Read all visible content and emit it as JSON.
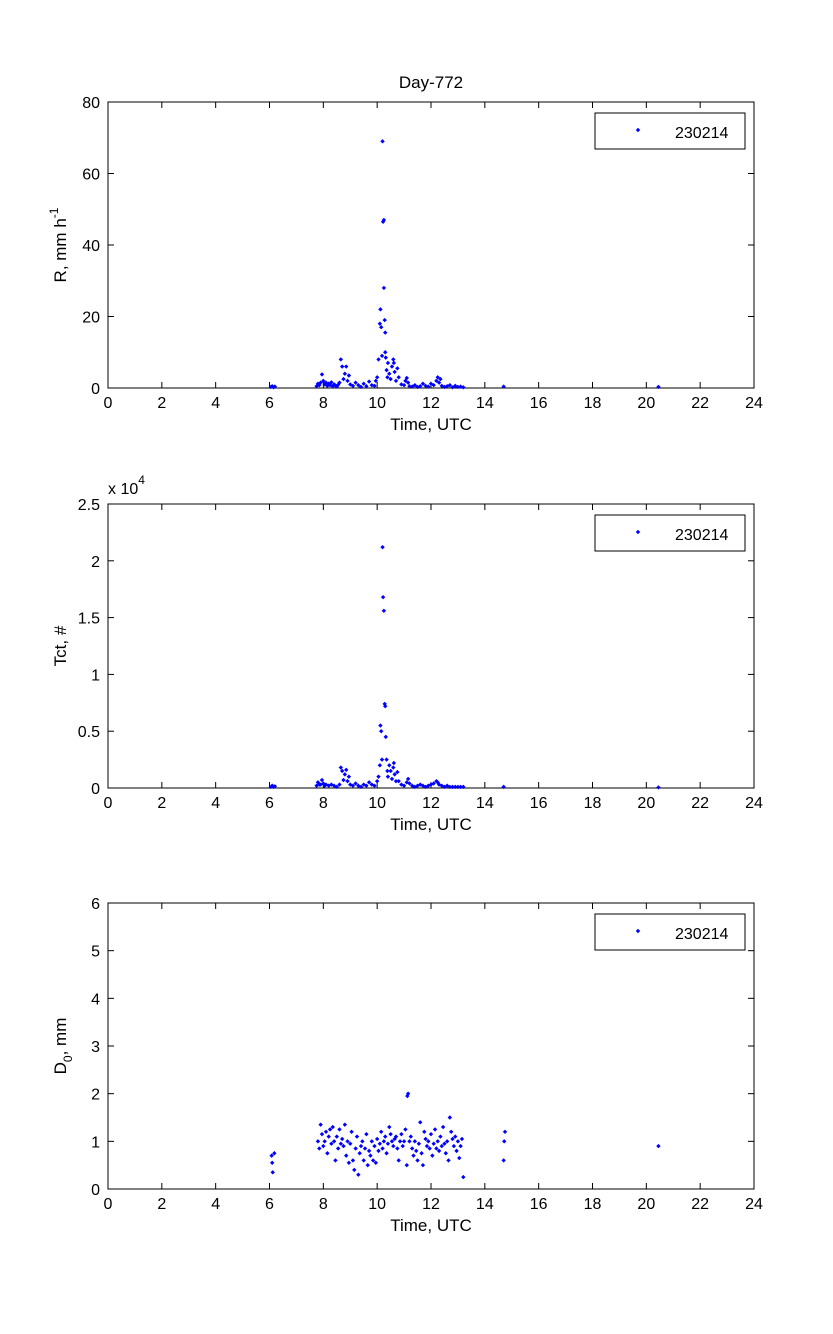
{
  "chart_data": [
    {
      "type": "scatter",
      "title": "Day-772",
      "xlabel": "Time, UTC",
      "ylabel": "R, mm h",
      "ylabel_sup": "-1",
      "exponent_label": "",
      "xlim": [
        0,
        24
      ],
      "ylim": [
        0,
        80
      ],
      "xticks": [
        "0",
        "2",
        "4",
        "6",
        "8",
        "10",
        "12",
        "14",
        "16",
        "18",
        "20",
        "22",
        "24"
      ],
      "yticks": [
        "0",
        "20",
        "40",
        "60",
        "80"
      ],
      "legend": {
        "position": "top-right",
        "label": "230214"
      },
      "color": "#0000ff",
      "series": [
        {
          "name": "230214",
          "x": [
            6.05,
            6.1,
            6.15,
            6.2,
            7.75,
            7.8,
            7.85,
            7.9,
            7.95,
            8.0,
            8.05,
            8.1,
            8.15,
            8.2,
            8.25,
            8.3,
            8.35,
            8.4,
            8.45,
            8.5,
            8.55,
            8.6,
            8.65,
            8.7,
            8.75,
            8.8,
            8.85,
            8.9,
            8.95,
            9.0,
            9.1,
            9.2,
            9.3,
            9.4,
            9.5,
            9.6,
            9.7,
            9.8,
            9.9,
            9.95,
            10.0,
            10.05,
            10.1,
            10.12,
            10.15,
            10.18,
            10.2,
            10.22,
            10.25,
            10.25,
            10.28,
            10.3,
            10.3,
            10.32,
            10.35,
            10.38,
            10.4,
            10.45,
            10.5,
            10.55,
            10.6,
            10.62,
            10.65,
            10.7,
            10.75,
            10.8,
            10.9,
            11.0,
            11.05,
            11.1,
            11.15,
            11.2,
            11.3,
            11.4,
            11.5,
            11.6,
            11.7,
            11.8,
            11.9,
            12.0,
            12.1,
            12.2,
            12.25,
            12.3,
            12.35,
            12.4,
            12.5,
            12.6,
            12.7,
            12.8,
            12.9,
            13.0,
            13.1,
            13.2,
            14.7,
            20.45
          ],
          "y": [
            0.3,
            0.5,
            0.2,
            0.4,
            0.5,
            1.2,
            0.8,
            1.5,
            3.8,
            2.0,
            1.0,
            1.5,
            0.6,
            1.2,
            0.8,
            1.6,
            0.5,
            1.0,
            0.7,
            0.4,
            0.9,
            1.5,
            8.0,
            6.0,
            2.5,
            4.0,
            6.0,
            2.0,
            3.5,
            1.0,
            0.6,
            1.5,
            0.8,
            0.3,
            1.2,
            0.5,
            1.8,
            0.8,
            0.6,
            2.0,
            3.0,
            8.0,
            18.0,
            22.0,
            17.0,
            9.0,
            69.0,
            46.5,
            47.0,
            28.0,
            19.0,
            15.5,
            10.0,
            8.5,
            5.0,
            3.0,
            7.0,
            4.0,
            2.5,
            6.0,
            8.0,
            7.0,
            4.5,
            2.0,
            5.5,
            3.0,
            1.0,
            0.8,
            2.0,
            2.8,
            1.5,
            0.5,
            0.4,
            0.8,
            0.3,
            0.5,
            1.2,
            0.6,
            0.4,
            1.2,
            0.8,
            2.0,
            3.0,
            1.5,
            2.5,
            0.6,
            0.3,
            0.5,
            0.8,
            0.2,
            0.6,
            0.3,
            0.4,
            0.2,
            0.4,
            0.3
          ]
        }
      ]
    },
    {
      "type": "scatter",
      "title": "",
      "xlabel": "Time, UTC",
      "ylabel": "Tct, #",
      "ylabel_sup": "",
      "exponent_label": "x 10",
      "exponent_sup": "4",
      "xlim": [
        0,
        24
      ],
      "ylim": [
        0,
        2.5
      ],
      "xticks": [
        "0",
        "2",
        "4",
        "6",
        "8",
        "10",
        "12",
        "14",
        "16",
        "18",
        "20",
        "22",
        "24"
      ],
      "yticks": [
        "0",
        "0.5",
        "1",
        "1.5",
        "2",
        "2.5"
      ],
      "legend": {
        "position": "top-right",
        "label": "230214"
      },
      "color": "#0000ff",
      "series": [
        {
          "name": "230214",
          "x": [
            6.05,
            6.1,
            6.15,
            6.2,
            7.75,
            7.8,
            7.85,
            7.9,
            7.95,
            8.0,
            8.05,
            8.1,
            8.2,
            8.3,
            8.4,
            8.5,
            8.6,
            8.65,
            8.7,
            8.75,
            8.8,
            8.85,
            8.9,
            8.95,
            9.0,
            9.1,
            9.2,
            9.3,
            9.4,
            9.5,
            9.6,
            9.7,
            9.8,
            9.9,
            10.0,
            10.05,
            10.1,
            10.12,
            10.15,
            10.18,
            10.2,
            10.22,
            10.25,
            10.28,
            10.3,
            10.32,
            10.35,
            10.38,
            10.4,
            10.45,
            10.5,
            10.55,
            10.6,
            10.62,
            10.65,
            10.7,
            10.75,
            10.8,
            10.9,
            11.0,
            11.1,
            11.15,
            11.2,
            11.3,
            11.4,
            11.5,
            11.6,
            11.7,
            11.8,
            11.9,
            12.0,
            12.1,
            12.2,
            12.25,
            12.3,
            12.4,
            12.5,
            12.6,
            12.7,
            12.8,
            12.9,
            13.0,
            13.1,
            13.2,
            14.7,
            20.45
          ],
          "y": [
            0.01,
            0.02,
            0.01,
            0.015,
            0.02,
            0.05,
            0.03,
            0.03,
            0.07,
            0.04,
            0.02,
            0.03,
            0.02,
            0.03,
            0.02,
            0.01,
            0.03,
            0.18,
            0.15,
            0.07,
            0.12,
            0.16,
            0.06,
            0.1,
            0.03,
            0.02,
            0.04,
            0.02,
            0.01,
            0.03,
            0.02,
            0.05,
            0.03,
            0.02,
            0.06,
            0.1,
            0.2,
            0.55,
            0.5,
            0.25,
            2.12,
            1.68,
            1.56,
            0.74,
            0.72,
            0.45,
            0.25,
            0.15,
            0.1,
            0.2,
            0.15,
            0.08,
            0.18,
            0.22,
            0.12,
            0.06,
            0.14,
            0.06,
            0.03,
            0.02,
            0.05,
            0.08,
            0.04,
            0.02,
            0.01,
            0.02,
            0.03,
            0.02,
            0.01,
            0.02,
            0.03,
            0.04,
            0.06,
            0.05,
            0.03,
            0.02,
            0.01,
            0.02,
            0.01,
            0.01,
            0.01,
            0.01,
            0.01,
            0.01,
            0.01,
            0.005
          ]
        }
      ]
    },
    {
      "type": "scatter",
      "title": "",
      "xlabel": "Time, UTC",
      "ylabel": "D",
      "ylabel_sub": "0",
      "ylabel_tail": ", mm",
      "exponent_label": "",
      "xlim": [
        0,
        24
      ],
      "ylim": [
        0,
        6
      ],
      "xticks": [
        "0",
        "2",
        "4",
        "6",
        "8",
        "10",
        "12",
        "14",
        "16",
        "18",
        "20",
        "22",
        "24"
      ],
      "yticks": [
        "0",
        "1",
        "2",
        "3",
        "4",
        "5",
        "6"
      ],
      "legend": {
        "position": "top-right",
        "label": "230214"
      },
      "color": "#0000ff",
      "series": [
        {
          "name": "230214",
          "x": [
            6.08,
            6.1,
            6.12,
            6.18,
            7.8,
            7.85,
            7.9,
            7.95,
            8.0,
            8.05,
            8.1,
            8.15,
            8.2,
            8.25,
            8.3,
            8.35,
            8.4,
            8.45,
            8.5,
            8.55,
            8.6,
            8.65,
            8.7,
            8.75,
            8.8,
            8.85,
            8.9,
            8.95,
            9.0,
            9.05,
            9.1,
            9.15,
            9.2,
            9.25,
            9.3,
            9.35,
            9.4,
            9.45,
            9.5,
            9.55,
            9.6,
            9.65,
            9.7,
            9.75,
            9.8,
            9.85,
            9.9,
            9.95,
            10.0,
            10.05,
            10.1,
            10.15,
            10.2,
            10.25,
            10.3,
            10.35,
            10.4,
            10.45,
            10.5,
            10.55,
            10.6,
            10.65,
            10.7,
            10.75,
            10.8,
            10.85,
            10.9,
            10.95,
            11.0,
            11.05,
            11.1,
            11.12,
            11.15,
            11.2,
            11.25,
            11.3,
            11.35,
            11.4,
            11.45,
            11.5,
            11.55,
            11.6,
            11.65,
            11.7,
            11.75,
            11.8,
            11.85,
            11.9,
            11.95,
            12.0,
            12.05,
            12.1,
            12.15,
            12.2,
            12.25,
            12.3,
            12.35,
            12.4,
            12.45,
            12.5,
            12.55,
            12.6,
            12.65,
            12.7,
            12.75,
            12.8,
            12.85,
            12.9,
            12.95,
            13.0,
            13.05,
            13.1,
            13.15,
            13.2,
            14.7,
            14.72,
            14.75,
            20.45
          ],
          "y": [
            0.7,
            0.55,
            0.35,
            0.75,
            1.0,
            0.85,
            1.35,
            1.15,
            0.9,
            1.0,
            1.2,
            0.75,
            1.1,
            1.25,
            0.95,
            1.3,
            1.0,
            0.6,
            1.1,
            0.85,
            1.25,
            0.95,
            1.05,
            0.9,
            1.35,
            0.7,
            1.0,
            0.55,
            0.95,
            1.2,
            0.6,
            0.4,
            0.85,
            1.1,
            0.3,
            0.75,
            0.9,
            1.0,
            0.6,
            0.85,
            1.15,
            0.5,
            0.8,
            0.7,
            1.0,
            0.6,
            0.9,
            0.55,
            1.05,
            0.8,
            0.95,
            1.2,
            0.85,
            1.0,
            1.1,
            0.75,
            0.95,
            1.3,
            1.15,
            1.0,
            0.9,
            1.05,
            1.1,
            0.85,
            0.6,
            1.0,
            1.15,
            0.9,
            1.0,
            1.25,
            0.5,
            1.95,
            2.0,
            1.0,
            1.1,
            0.85,
            0.7,
            1.0,
            0.8,
            0.6,
            0.95,
            1.4,
            0.75,
            0.5,
            1.2,
            1.05,
            0.9,
            1.0,
            0.85,
            1.15,
            0.7,
            0.95,
            1.25,
            0.85,
            1.0,
            0.8,
            1.1,
            0.9,
            1.3,
            0.95,
            0.75,
            1.0,
            0.6,
            1.5,
            1.2,
            1.05,
            0.9,
            1.1,
            0.8,
            1.0,
            0.65,
            0.9,
            1.05,
            0.25,
            0.6,
            1.0,
            1.2,
            0.9
          ]
        }
      ]
    }
  ]
}
